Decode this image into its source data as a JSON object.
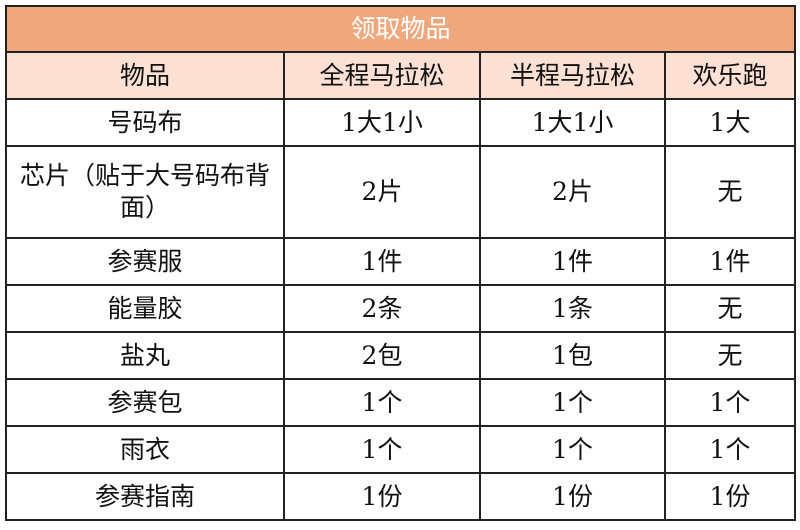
{
  "title": "领取物品",
  "headers": [
    "物品",
    "全程马拉松",
    "半程马拉松",
    "欢乐跑"
  ],
  "rows": [
    [
      "号码布",
      "1大1小",
      "1大1小",
      "1大"
    ],
    [
      "芯片（贴于大号码布背面）",
      "2片",
      "2片",
      "无"
    ],
    [
      "参赛服",
      "1件",
      "1件",
      "1件"
    ],
    [
      "能量胶",
      "2条",
      "1条",
      "无"
    ],
    [
      "盐丸",
      "2包",
      "1包",
      "无"
    ],
    [
      "参赛包",
      "1个",
      "1个",
      "1个"
    ],
    [
      "雨衣",
      "1个",
      "1个",
      "1个"
    ],
    [
      "参赛指南",
      "1份",
      "1份",
      "1份"
    ]
  ],
  "colors": {
    "title_bg": "#EFA77E",
    "header_bg": "#FBE0D3",
    "border": "#222222"
  }
}
